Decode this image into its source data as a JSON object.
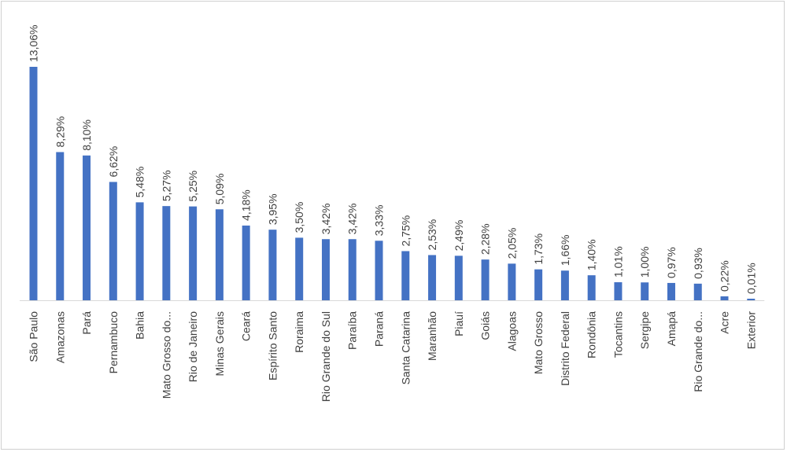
{
  "chart_data": {
    "type": "bar",
    "title": "",
    "xlabel": "",
    "ylabel": "",
    "ylim": [
      0,
      13.06
    ],
    "grid": false,
    "legend": "none",
    "bar_color": "#4472C4",
    "categories": [
      "São Paulo",
      "Amazonas",
      "Pará",
      "Pernambuco",
      "Bahia",
      "Mato Grosso do...",
      "Rio de Janeiro",
      "Minas Gerais",
      "Ceará",
      "Espírito Santo",
      "Roraima",
      "Rio Grande do Sul",
      "Paraíba",
      "Paraná",
      "Santa Catarina",
      "Maranhão",
      "Piauí",
      "Goiás",
      "Alagoas",
      "Mato Grosso",
      "Distrito Federal",
      "Rondônia",
      "Tocantins",
      "Sergipe",
      "Amapá",
      "Rio Grande do...",
      "Acre",
      "Exterior"
    ],
    "values": [
      13.06,
      8.29,
      8.1,
      6.62,
      5.48,
      5.27,
      5.25,
      5.09,
      4.18,
      3.95,
      3.5,
      3.42,
      3.42,
      3.33,
      2.75,
      2.53,
      2.49,
      2.28,
      2.05,
      1.73,
      1.66,
      1.4,
      1.01,
      1.0,
      0.97,
      0.93,
      0.22,
      0.01
    ],
    "data_labels": [
      "13,06%",
      "8,29%",
      "8,10%",
      "6,62%",
      "5,48%",
      "5,27%",
      "5,25%",
      "5,09%",
      "4,18%",
      "3,95%",
      "3,50%",
      "3,42%",
      "3,42%",
      "3,33%",
      "2,75%",
      "2,53%",
      "2,49%",
      "2,28%",
      "2,05%",
      "1,73%",
      "1,66%",
      "1,40%",
      "1,01%",
      "1,00%",
      "0,97%",
      "0,93%",
      "0,22%",
      "0,01%"
    ]
  }
}
